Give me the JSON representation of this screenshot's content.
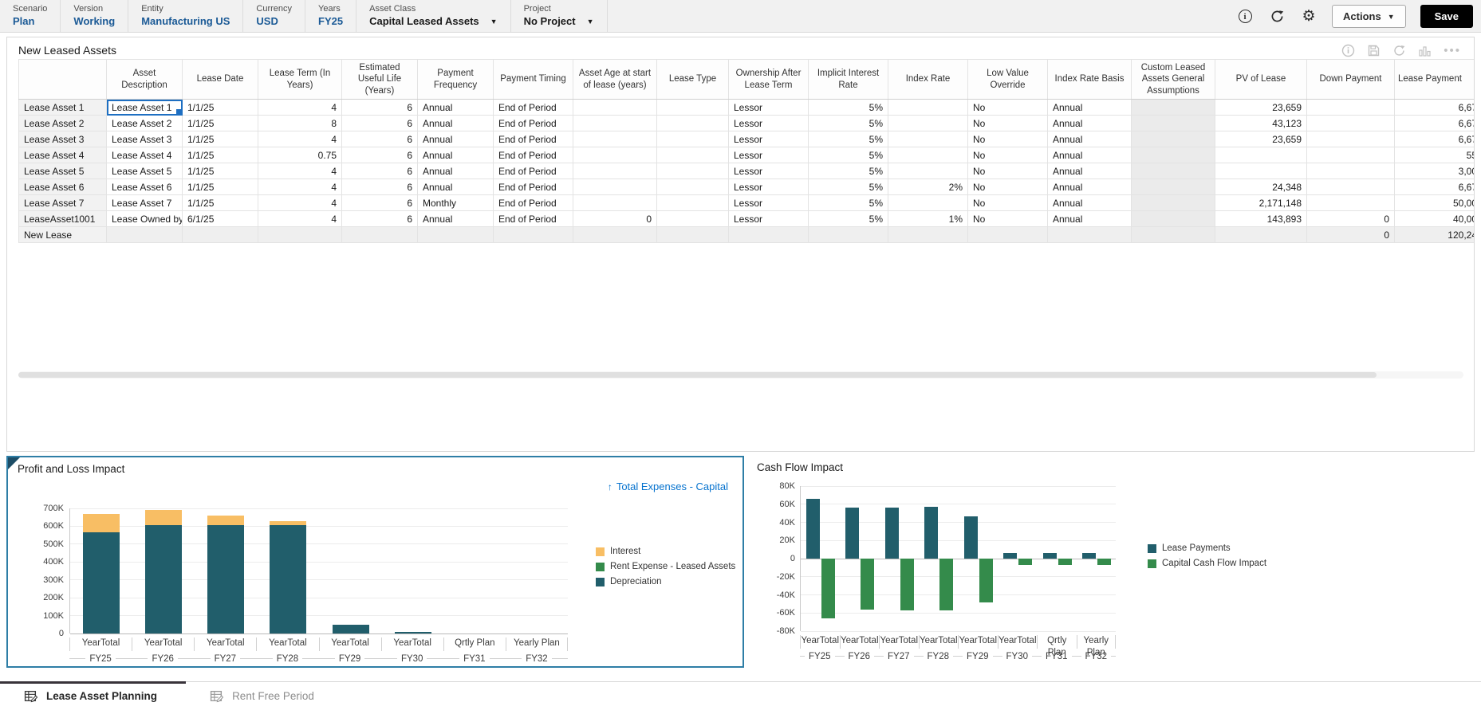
{
  "pov": {
    "items": [
      {
        "label": "Scenario",
        "value": "Plan",
        "type": "link"
      },
      {
        "label": "Version",
        "value": "Working",
        "type": "link"
      },
      {
        "label": "Entity",
        "value": "Manufacturing US",
        "type": "link"
      },
      {
        "label": "Currency",
        "value": "USD",
        "type": "link"
      },
      {
        "label": "Years",
        "value": "FY25",
        "type": "link"
      },
      {
        "label": "Asset Class",
        "value": "Capital Leased Assets",
        "type": "dropdown"
      },
      {
        "label": "Project",
        "value": "No Project",
        "type": "dropdown"
      }
    ],
    "icons": [
      "info-icon",
      "refresh-icon",
      "settings-icon"
    ],
    "actions_label": "Actions",
    "save_label": "Save"
  },
  "grid": {
    "title": "New Leased Assets",
    "toolbar_icons": [
      "info-icon",
      "save-icon",
      "refresh-icon",
      "chart-icon",
      "more-icon"
    ],
    "columns": [
      "Asset Description",
      "Lease Date",
      "Lease Term (In Years)",
      "Estimated Useful Life (Years)",
      "Payment Frequency",
      "Payment Timing",
      "Asset Age at start of lease (years)",
      "Lease Type",
      "Ownership After Lease Term",
      "Implicit Interest Rate",
      "Index Rate",
      "Low Value Override",
      "Index Rate Basis",
      "Custom Leased Assets General Assumptions",
      "PV of Lease",
      "Down Payment",
      "Lease Payment"
    ],
    "rows": [
      {
        "header": "Lease Asset 1",
        "cells": [
          "Lease Asset 1",
          "1/1/25",
          "4",
          "6",
          "Annual",
          "End of Period",
          "",
          "",
          "Lessor",
          "5%",
          "",
          "No",
          "Annual",
          "",
          "23,659",
          "",
          "6,67"
        ]
      },
      {
        "header": "Lease Asset 2",
        "cells": [
          "Lease Asset 2",
          "1/1/25",
          "8",
          "6",
          "Annual",
          "End of Period",
          "",
          "",
          "Lessor",
          "5%",
          "",
          "No",
          "Annual",
          "",
          "43,123",
          "",
          "6,67"
        ]
      },
      {
        "header": "Lease Asset 3",
        "cells": [
          "Lease Asset 3",
          "1/1/25",
          "4",
          "6",
          "Annual",
          "End of Period",
          "",
          "",
          "Lessor",
          "5%",
          "",
          "No",
          "Annual",
          "",
          "23,659",
          "",
          "6,67"
        ]
      },
      {
        "header": "Lease Asset 4",
        "cells": [
          "Lease Asset 4",
          "1/1/25",
          "0.75",
          "6",
          "Annual",
          "End of Period",
          "",
          "",
          "Lessor",
          "5%",
          "",
          "No",
          "Annual",
          "",
          "",
          "",
          "55"
        ]
      },
      {
        "header": "Lease Asset 5",
        "cells": [
          "Lease Asset 5",
          "1/1/25",
          "4",
          "6",
          "Annual",
          "End of Period",
          "",
          "",
          "Lessor",
          "5%",
          "",
          "No",
          "Annual",
          "",
          "",
          "",
          "3,00"
        ]
      },
      {
        "header": "Lease Asset 6",
        "cells": [
          "Lease Asset 6",
          "1/1/25",
          "4",
          "6",
          "Annual",
          "End of Period",
          "",
          "",
          "Lessor",
          "5%",
          "2%",
          "No",
          "Annual",
          "",
          "24,348",
          "",
          "6,67"
        ]
      },
      {
        "header": "Lease Asset 7",
        "cells": [
          "Lease Asset 7",
          "1/1/25",
          "4",
          "6",
          "Monthly",
          "End of Period",
          "",
          "",
          "Lessor",
          "5%",
          "",
          "No",
          "Annual",
          "",
          "2,171,148",
          "",
          "50,00"
        ]
      },
      {
        "header": "LeaseAsset1001",
        "cells": [
          "Lease Owned by",
          "6/1/25",
          "4",
          "6",
          "Annual",
          "End of Period",
          "0",
          "",
          "Lessor",
          "5%",
          "1%",
          "No",
          "Annual",
          "",
          "143,893",
          "0",
          "40,00"
        ]
      },
      {
        "header": "New Lease",
        "cells": [
          "",
          "",
          "",
          "",
          "",
          "",
          "",
          "",
          "",
          "",
          "",
          "",
          "",
          "",
          "",
          "0",
          "120,24"
        ]
      }
    ]
  },
  "chart_data": [
    {
      "type": "bar",
      "mode": "stacked",
      "title": "Profit and Loss Impact",
      "link_label": "Total Expenses - Capital",
      "categories": [
        {
          "period": "YearTotal",
          "year": "FY25"
        },
        {
          "period": "YearTotal",
          "year": "FY26"
        },
        {
          "period": "YearTotal",
          "year": "FY27"
        },
        {
          "period": "YearTotal",
          "year": "FY28"
        },
        {
          "period": "YearTotal",
          "year": "FY29"
        },
        {
          "period": "YearTotal",
          "year": "FY30"
        },
        {
          "period": "Qrtly Plan",
          "year": "FY31"
        },
        {
          "period": "Yearly Plan",
          "year": "FY32"
        }
      ],
      "series": [
        {
          "name": "Interest",
          "color": "#F8BE64",
          "values": [
            105000,
            85000,
            55000,
            25000,
            0,
            0,
            0,
            0
          ]
        },
        {
          "name": "Rent Expense - Leased Assets",
          "color": "#348B4B",
          "values": [
            0,
            0,
            0,
            0,
            0,
            0,
            0,
            0
          ]
        },
        {
          "name": "Depreciation",
          "color": "#215E6B",
          "values": [
            565000,
            605000,
            605000,
            605000,
            48000,
            10000,
            0,
            0
          ]
        }
      ],
      "ylim": [
        0,
        700000
      ],
      "yticks": [
        "700K",
        "600K",
        "500K",
        "400K",
        "300K",
        "200K",
        "100K",
        "0"
      ],
      "legend_position": "right",
      "grid": true
    },
    {
      "type": "bar",
      "mode": "grouped",
      "title": "Cash Flow Impact",
      "categories": [
        {
          "period": "YearTotal",
          "year": "FY25"
        },
        {
          "period": "YearTotal",
          "year": "FY26"
        },
        {
          "period": "YearTotal",
          "year": "FY27"
        },
        {
          "period": "YearTotal",
          "year": "FY28"
        },
        {
          "period": "YearTotal",
          "year": "FY29"
        },
        {
          "period": "YearTotal",
          "year": "FY30"
        },
        {
          "period": "Qrtly Plan",
          "year": "FY31"
        },
        {
          "period": "Yearly Plan",
          "year": "FY32"
        }
      ],
      "series": [
        {
          "name": "Lease Payments",
          "color": "#215E6B",
          "values": [
            66000,
            56000,
            56500,
            57000,
            47000,
            6500,
            6500,
            6500
          ]
        },
        {
          "name": "Capital Cash Flow Impact",
          "color": "#348B4B",
          "values": [
            -66000,
            -56000,
            -57000,
            -57500,
            -48000,
            -7000,
            -7000,
            -7000
          ]
        }
      ],
      "ylim": [
        -80000,
        80000
      ],
      "yticks": [
        "80K",
        "60K",
        "40K",
        "20K",
        "0",
        "-20K",
        "-40K",
        "-60K",
        "-80K"
      ],
      "legend_position": "right",
      "grid": true
    }
  ],
  "tabs": [
    {
      "label": "Lease Asset Planning",
      "active": true
    },
    {
      "label": "Rent Free Period",
      "active": false
    }
  ]
}
